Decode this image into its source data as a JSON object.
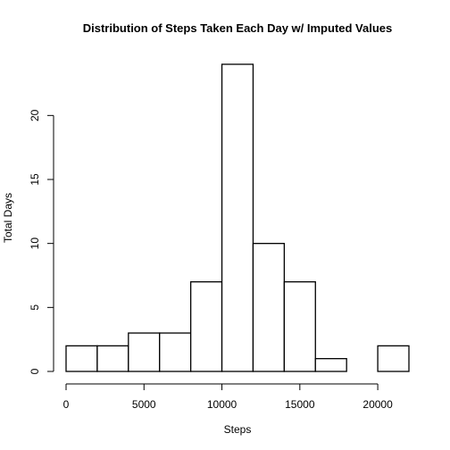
{
  "chart_data": {
    "type": "bar",
    "title": "Distribution of Steps Taken Each Day w/ Imputed Values",
    "xlabel": "Steps",
    "ylabel": "Total Days",
    "bin_edges": [
      0,
      2000,
      4000,
      6000,
      8000,
      10000,
      12000,
      14000,
      16000,
      18000,
      20000,
      22000
    ],
    "values": [
      2,
      2,
      3,
      3,
      7,
      24,
      10,
      7,
      1,
      0,
      2
    ],
    "xlim": [
      0,
      22000
    ],
    "ylim": [
      0,
      24
    ],
    "x_ticks": [
      0,
      5000,
      10000,
      15000,
      20000
    ],
    "x_tick_labels": [
      "0",
      "5000",
      "10000",
      "15000",
      "20000"
    ],
    "y_ticks": [
      0,
      5,
      10,
      15,
      20
    ],
    "y_tick_labels": [
      "0",
      "5",
      "10",
      "15",
      "20"
    ],
    "grid": false,
    "bar_fill": "#ffffff",
    "bar_stroke": "#000000"
  }
}
